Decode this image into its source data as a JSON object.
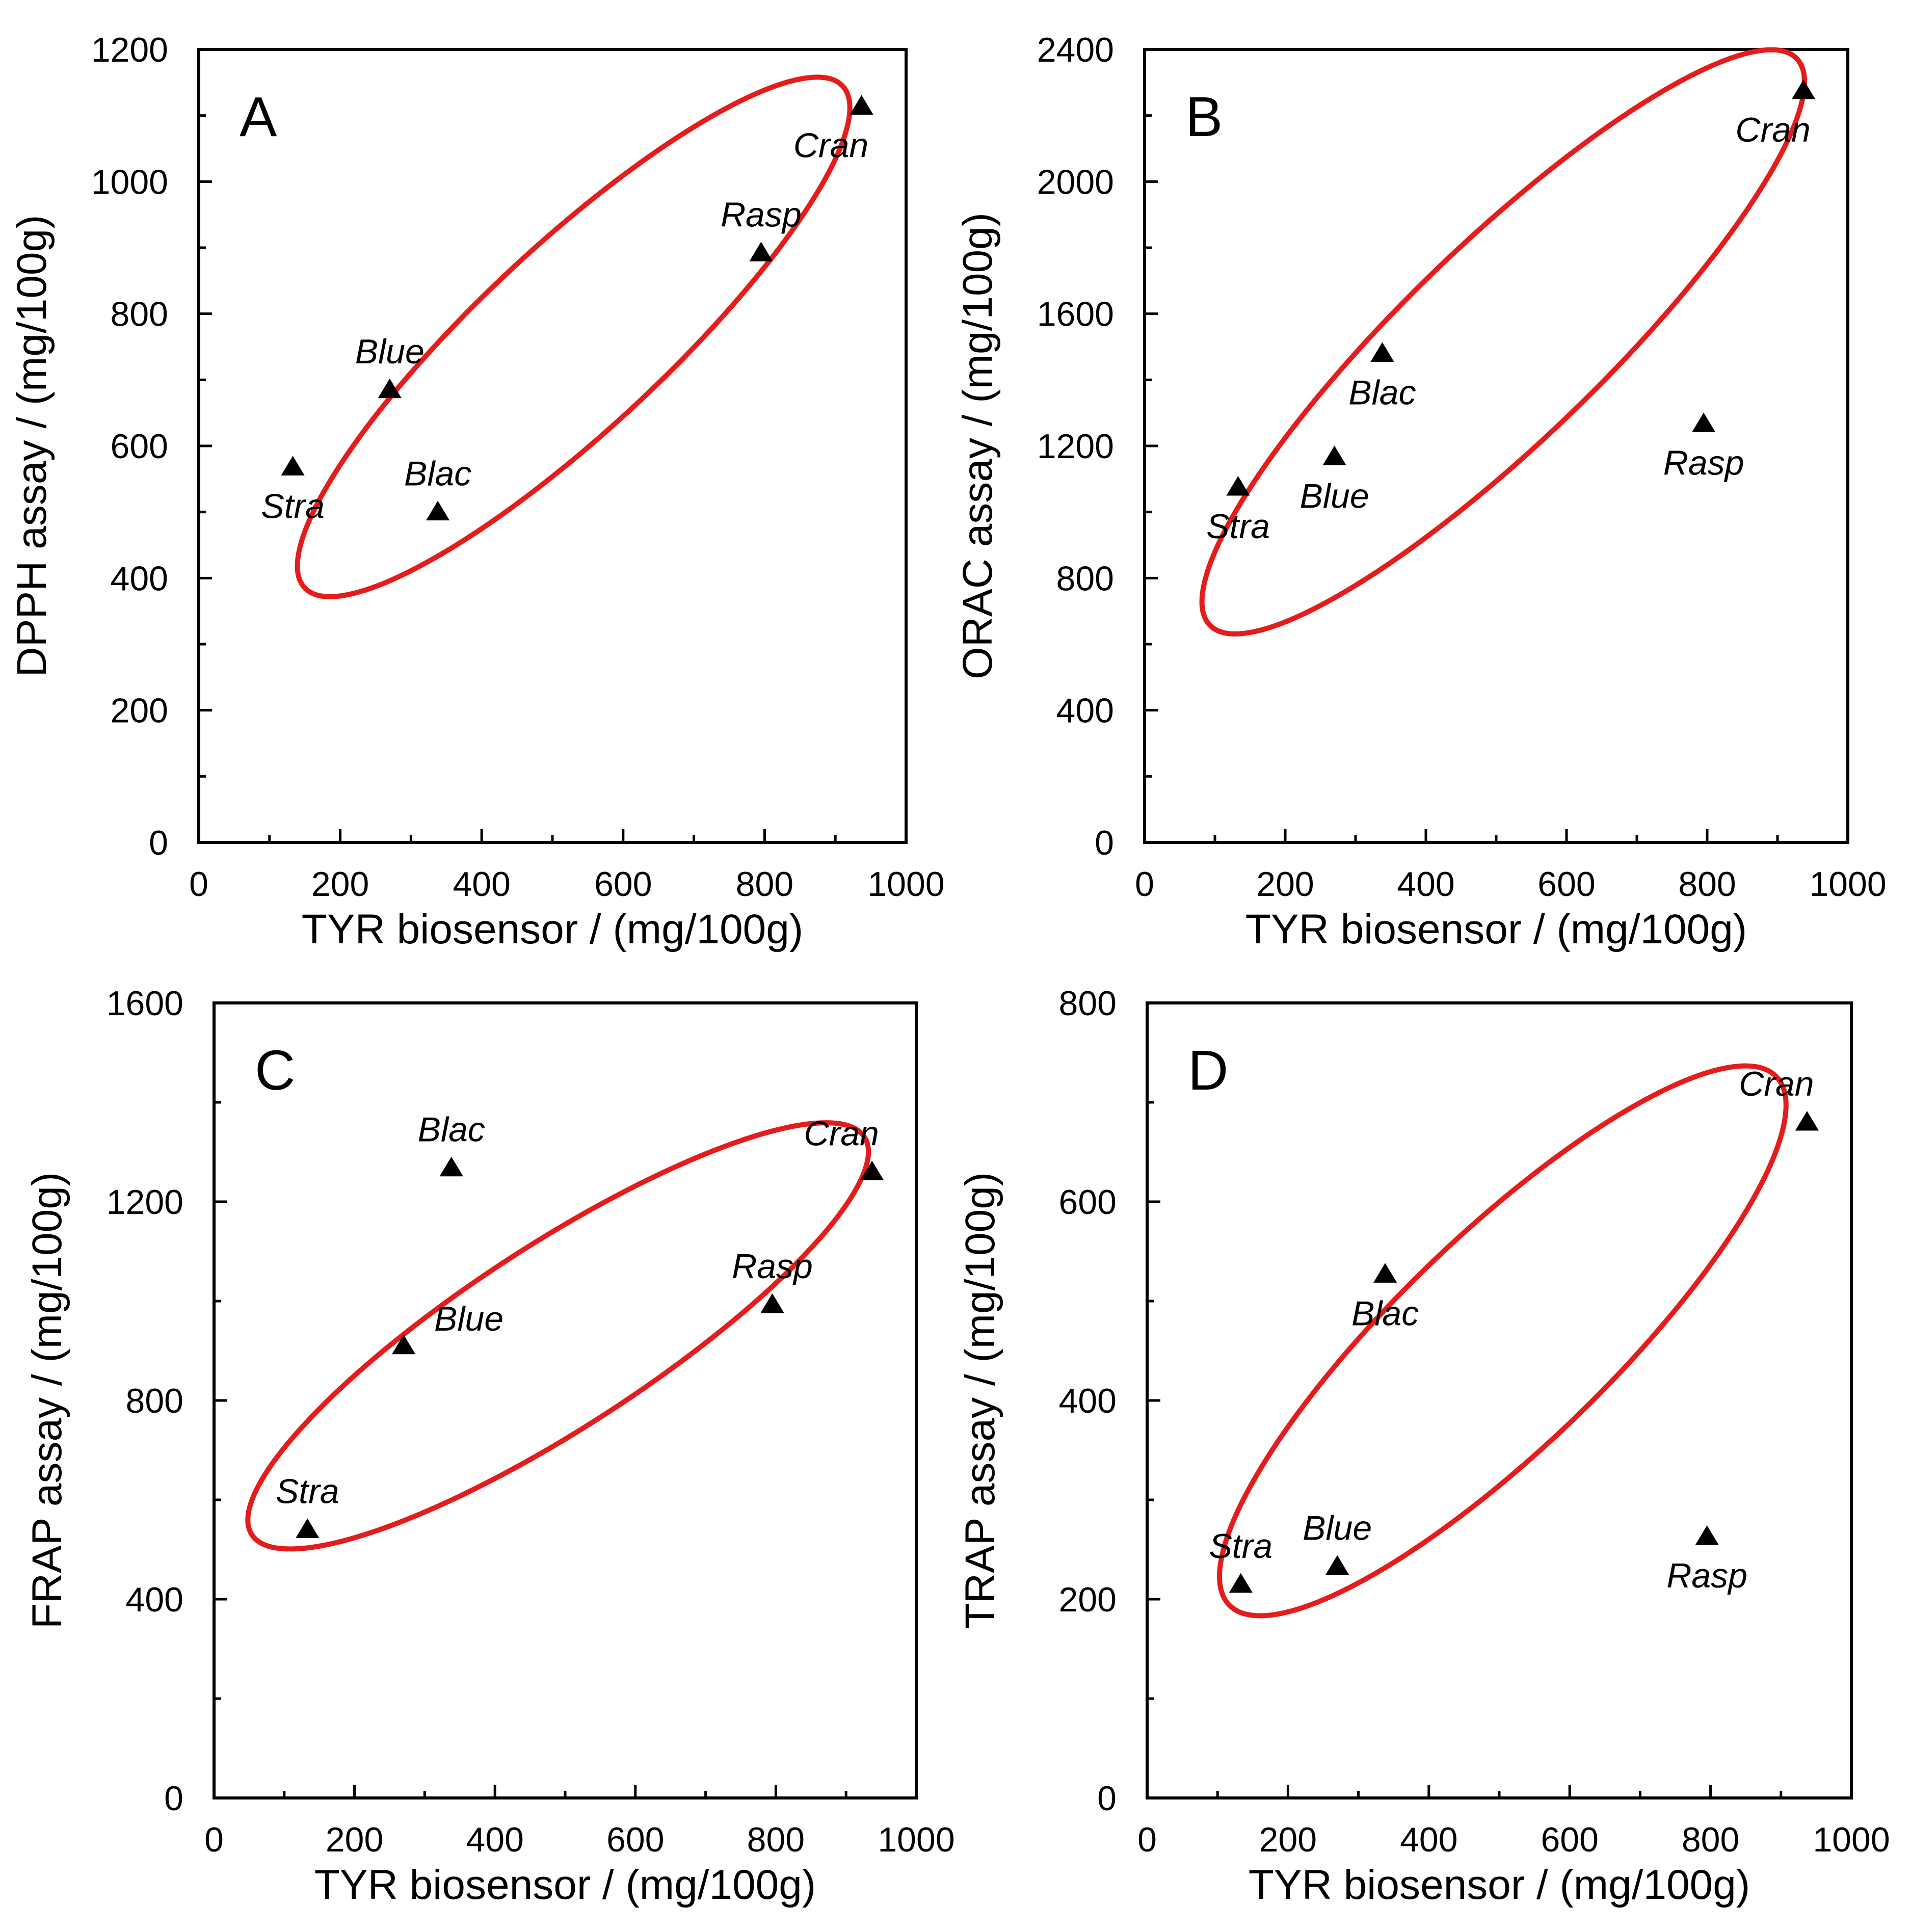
{
  "colors": {
    "ellipse": "#e51c1c",
    "marker": "#000000",
    "axes": "#000000",
    "background": "#ffffff"
  },
  "chart_data": [
    {
      "type": "scatter",
      "panel": "A",
      "xlabel": "TYR biosensor / (mg/100g)",
      "ylabel": "DPPH assay / (mg/100g)",
      "xlim": [
        0,
        1000
      ],
      "ylim": [
        0,
        1200
      ],
      "xticks": [
        0,
        200,
        400,
        600,
        800,
        1000
      ],
      "yticks": [
        0,
        200,
        400,
        600,
        800,
        1000,
        1200
      ],
      "minor_per_major": 2,
      "points": [
        {
          "label": "Stra",
          "x": 133,
          "y": 568,
          "label_pos": "below"
        },
        {
          "label": "Blue",
          "x": 270,
          "y": 685,
          "label_pos": "above"
        },
        {
          "label": "Blac",
          "x": 338,
          "y": 500,
          "label_pos": "above"
        },
        {
          "label": "Rasp",
          "x": 795,
          "y": 892,
          "label_pos": "above"
        },
        {
          "label": "Cran",
          "x": 937,
          "y": 1114,
          "label_pos": "below"
        }
      ],
      "ellipse": {
        "cx": 530,
        "cy": 765,
        "rx": 520,
        "ry": 130,
        "angle_deg": -43
      }
    },
    {
      "type": "scatter",
      "panel": "B",
      "xlabel": "TYR biosensor / (mg/100g)",
      "ylabel": "ORAC assay / (mg/100g)",
      "xlim": [
        0,
        1000
      ],
      "ylim": [
        0,
        2400
      ],
      "xticks": [
        0,
        200,
        400,
        600,
        800,
        1000
      ],
      "yticks": [
        0,
        400,
        800,
        1200,
        1600,
        2000,
        2400
      ],
      "minor_per_major": 2,
      "points": [
        {
          "label": "Stra",
          "x": 133,
          "y": 1075,
          "label_pos": "below"
        },
        {
          "label": "Blue",
          "x": 270,
          "y": 1167,
          "label_pos": "below"
        },
        {
          "label": "Blac",
          "x": 338,
          "y": 1480,
          "label_pos": "below"
        },
        {
          "label": "Rasp",
          "x": 795,
          "y": 1267,
          "label_pos": "below"
        },
        {
          "label": "Cran",
          "x": 937,
          "y": 2275,
          "label_pos": "below"
        }
      ],
      "ellipse": {
        "cx": 510,
        "cy": 1515,
        "rx": 580,
        "ry": 140,
        "angle_deg": -44
      }
    },
    {
      "type": "scatter",
      "panel": "C",
      "xlabel": "TYR biosensor / (mg/100g)",
      "ylabel": "FRAP assay / (mg/100g)",
      "xlim": [
        0,
        1000
      ],
      "ylim": [
        0,
        1600
      ],
      "xticks": [
        0,
        200,
        400,
        600,
        800,
        1000
      ],
      "yticks": [
        0,
        400,
        800,
        1200,
        1600
      ],
      "minor_per_major": 2,
      "points": [
        {
          "label": "Stra",
          "x": 133,
          "y": 540,
          "label_pos": "above"
        },
        {
          "label": "Blue",
          "x": 270,
          "y": 910,
          "label_pos": "above-right"
        },
        {
          "label": "Blac",
          "x": 338,
          "y": 1268,
          "label_pos": "above"
        },
        {
          "label": "Rasp",
          "x": 795,
          "y": 993,
          "label_pos": "above"
        },
        {
          "label": "Cran",
          "x": 937,
          "y": 1260,
          "label_pos": "above"
        }
      ],
      "ellipse": {
        "cx": 490,
        "cy": 930,
        "rx": 520,
        "ry": 130,
        "angle_deg": -33
      }
    },
    {
      "type": "scatter",
      "panel": "D",
      "xlabel": "TYR biosensor / (mg/100g)",
      "ylabel": "TRAP assay / (mg/100g)",
      "xlim": [
        0,
        1000
      ],
      "ylim": [
        0,
        800
      ],
      "xticks": [
        0,
        200,
        400,
        600,
        800,
        1000
      ],
      "yticks": [
        0,
        200,
        400,
        600,
        800
      ],
      "minor_per_major": 2,
      "points": [
        {
          "label": "Stra",
          "x": 133,
          "y": 215,
          "label_pos": "above"
        },
        {
          "label": "Blue",
          "x": 270,
          "y": 233,
          "label_pos": "above"
        },
        {
          "label": "Blac",
          "x": 338,
          "y": 527,
          "label_pos": "below"
        },
        {
          "label": "Rasp",
          "x": 795,
          "y": 263,
          "label_pos": "below"
        },
        {
          "label": "Cran",
          "x": 937,
          "y": 680,
          "label_pos": "above"
        }
      ],
      "ellipse": {
        "cx": 505,
        "cy": 460,
        "rx": 540,
        "ry": 150,
        "angle_deg": -44
      }
    }
  ]
}
